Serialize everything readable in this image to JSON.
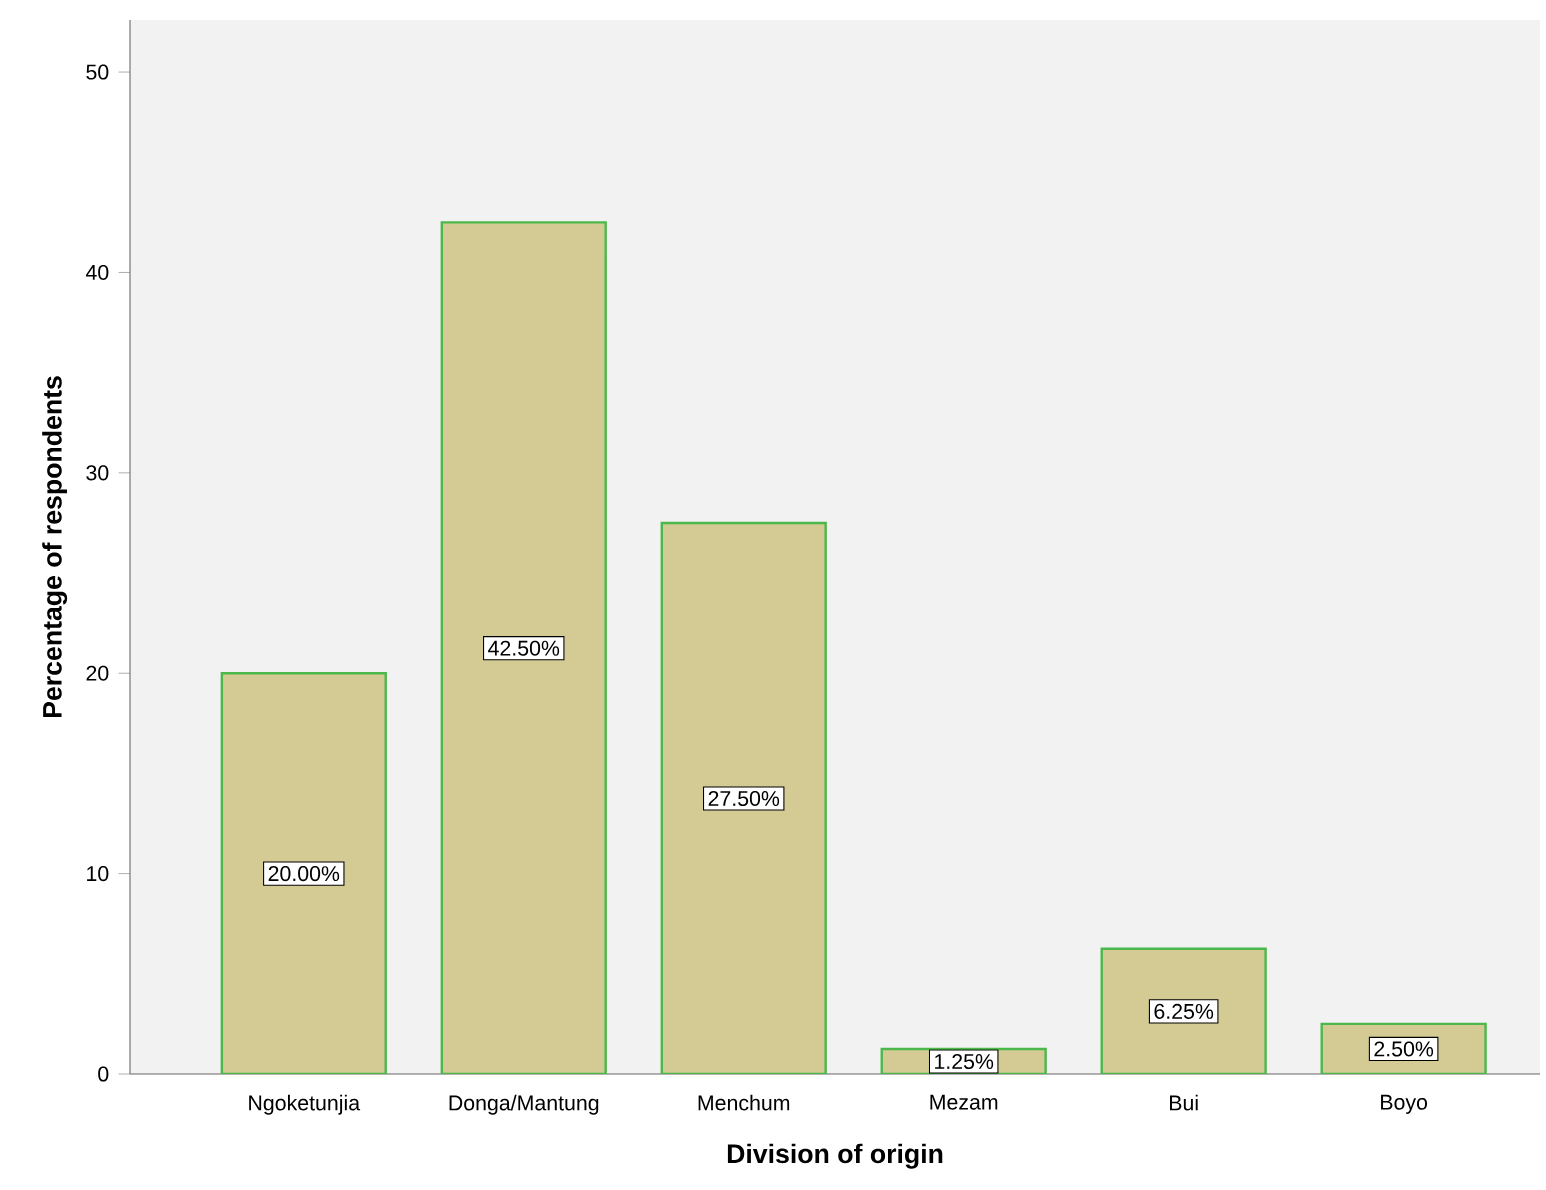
{
  "chart_data": {
    "type": "bar",
    "xlabel": "Division of origin",
    "ylabel": "Percentage of respondents",
    "categories": [
      "Ngoketunjia",
      "Donga/Mantung",
      "Menchum",
      "Mezam",
      "Bui",
      "Boyo"
    ],
    "values": [
      20.0,
      42.5,
      27.5,
      1.25,
      6.25,
      2.5
    ],
    "value_labels": [
      "20.00%",
      "42.50%",
      "27.50%",
      "1.25%",
      "6.25%",
      "2.50%"
    ],
    "color": "#d3cb93",
    "ylim": [
      0,
      52.6
    ],
    "yticks": [
      0,
      10,
      20,
      30,
      40,
      50
    ],
    "grid": false
  }
}
